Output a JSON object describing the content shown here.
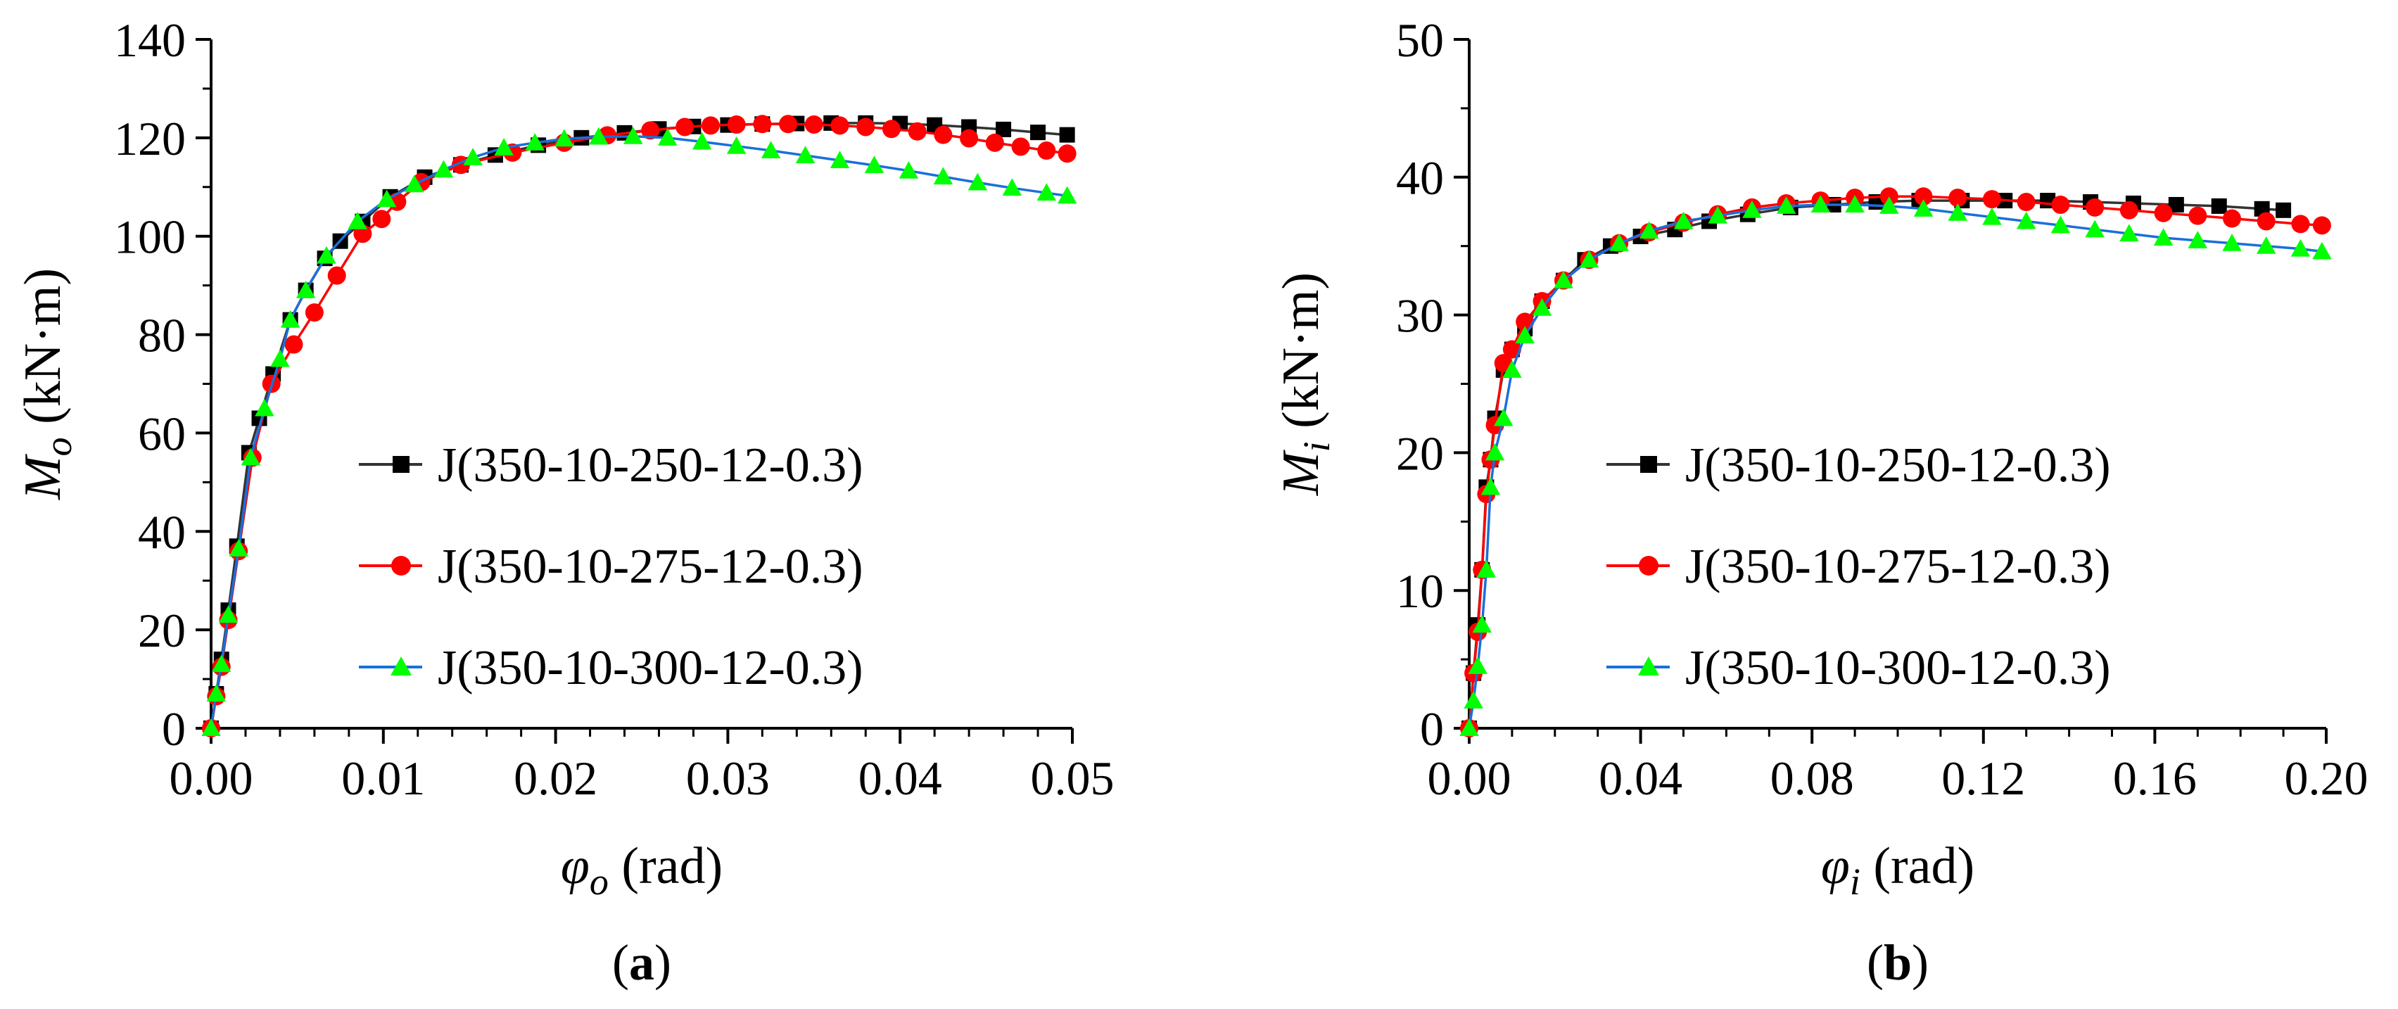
{
  "chart_data": [
    {
      "type": "line",
      "panel_label": "a",
      "xlabel": {
        "symbol": "φ",
        "subscript": "o",
        "unit": "(rad)"
      },
      "ylabel": {
        "symbol": "M",
        "subscript": "o",
        "unit": "(kN·m)"
      },
      "xlim": [
        0,
        0.05
      ],
      "ylim": [
        0,
        140
      ],
      "xticks": [
        0,
        0.01,
        0.02,
        0.03,
        0.04,
        0.05
      ],
      "xtick_labels": [
        "0.00",
        "0.01",
        "0.02",
        "0.03",
        "0.04",
        "0.05"
      ],
      "yticks": [
        0,
        20,
        40,
        60,
        80,
        100,
        120,
        140
      ],
      "ytick_labels": [
        "0",
        "20",
        "40",
        "60",
        "80",
        "100",
        "120",
        "140"
      ],
      "legend_position": "center-right",
      "series": [
        {
          "name": "J(350-10-250-12-0.3)",
          "color": "#000000",
          "line_color": "#333333",
          "marker": "square",
          "x": [
            0,
            0.0003,
            0.0006,
            0.001,
            0.0015,
            0.0022,
            0.0028,
            0.0036,
            0.0046,
            0.0055,
            0.0066,
            0.0075,
            0.0088,
            0.0104,
            0.0124,
            0.0145,
            0.0165,
            0.019,
            0.0215,
            0.024,
            0.026,
            0.028,
            0.03,
            0.032,
            0.034,
            0.036,
            0.038,
            0.04,
            0.042,
            0.044,
            0.046,
            0.048,
            0.0497
          ],
          "y": [
            0,
            7,
            14,
            24,
            37,
            56,
            63,
            72,
            83,
            89,
            95.5,
            99,
            103,
            108,
            112,
            114.5,
            116.5,
            118.5,
            120,
            121,
            121.8,
            122.3,
            122.6,
            122.8,
            122.9,
            123,
            123,
            122.9,
            122.6,
            122.2,
            121.7,
            121.1,
            120.6
          ]
        },
        {
          "name": "J(350-10-275-12-0.3)",
          "color": "#ff0000",
          "line_color": "#ff0000",
          "marker": "circle",
          "x": [
            0,
            0.0003,
            0.0006,
            0.001,
            0.0016,
            0.0024,
            0.0035,
            0.0048,
            0.006,
            0.0073,
            0.0088,
            0.0099,
            0.0108,
            0.0122,
            0.0145,
            0.0175,
            0.0205,
            0.023,
            0.0255,
            0.0275,
            0.029,
            0.0305,
            0.032,
            0.0335,
            0.035,
            0.0365,
            0.038,
            0.0395,
            0.041,
            0.0425,
            0.044,
            0.0455,
            0.047,
            0.0485,
            0.0497
          ],
          "y": [
            0,
            6.5,
            12.5,
            22,
            36,
            55,
            70,
            78,
            84.5,
            92,
            100.5,
            103.5,
            107,
            111,
            114.5,
            117,
            119,
            120.5,
            121.5,
            122.2,
            122.5,
            122.7,
            122.8,
            122.8,
            122.7,
            122.5,
            122.2,
            121.8,
            121.3,
            120.6,
            119.9,
            119,
            118.2,
            117.4,
            116.8
          ]
        },
        {
          "name": "J(350-10-300-12-0.3)",
          "color": "#00ff00",
          "line_color": "#1a6fd9",
          "marker": "triangle",
          "x": [
            0,
            0.0003,
            0.0006,
            0.001,
            0.0016,
            0.0023,
            0.0031,
            0.004,
            0.0046,
            0.0055,
            0.0067,
            0.0085,
            0.0102,
            0.0118,
            0.0135,
            0.0152,
            0.017,
            0.0188,
            0.0205,
            0.0225,
            0.0245,
            0.0265,
            0.0285,
            0.0305,
            0.0325,
            0.0345,
            0.0365,
            0.0385,
            0.0405,
            0.0425,
            0.0445,
            0.0465,
            0.0485,
            0.0497
          ],
          "y": [
            0,
            7,
            13,
            23,
            36.5,
            55,
            65,
            75,
            83,
            89,
            96,
            103,
            107.5,
            110.5,
            113.5,
            116,
            118,
            119,
            119.8,
            120.2,
            120.3,
            120,
            119.2,
            118.3,
            117.4,
            116.4,
            115.4,
            114.4,
            113.3,
            112.1,
            110.9,
            109.8,
            108.8,
            108.2
          ]
        }
      ]
    },
    {
      "type": "line",
      "panel_label": "b",
      "xlabel": {
        "symbol": "φ",
        "subscript": "i",
        "unit": "(rad)"
      },
      "ylabel": {
        "symbol": "M",
        "subscript": "i",
        "unit": "(kN·m)"
      },
      "xlim": [
        0,
        0.2
      ],
      "ylim": [
        0,
        50
      ],
      "xticks": [
        0,
        0.04,
        0.08,
        0.12,
        0.16,
        0.2
      ],
      "xtick_labels": [
        "0.00",
        "0.04",
        "0.08",
        "0.12",
        "0.16",
        "0.20"
      ],
      "yticks": [
        0,
        10,
        20,
        30,
        40,
        50
      ],
      "ytick_labels": [
        "0",
        "10",
        "20",
        "30",
        "40",
        "50"
      ],
      "legend_position": "center-right",
      "series": [
        {
          "name": "J(350-10-250-12-0.3)",
          "color": "#000000",
          "line_color": "#333333",
          "marker": "square",
          "x": [
            0,
            0.001,
            0.002,
            0.003,
            0.004,
            0.005,
            0.006,
            0.008,
            0.01,
            0.013,
            0.017,
            0.022,
            0.027,
            0.033,
            0.04,
            0.048,
            0.056,
            0.065,
            0.075,
            0.085,
            0.095,
            0.105,
            0.115,
            0.125,
            0.135,
            0.145,
            0.155,
            0.165,
            0.175,
            0.185,
            0.19
          ],
          "y": [
            0,
            4,
            7.5,
            11.5,
            17.5,
            19.5,
            22.5,
            26,
            27.5,
            29,
            31,
            32.5,
            34,
            35,
            35.7,
            36.2,
            36.8,
            37.3,
            37.8,
            38,
            38.2,
            38.3,
            38.3,
            38.3,
            38.3,
            38.2,
            38.1,
            38,
            37.9,
            37.7,
            37.6
          ]
        },
        {
          "name": "J(350-10-275-12-0.3)",
          "color": "#ff0000",
          "line_color": "#ff0000",
          "marker": "circle",
          "x": [
            0,
            0.001,
            0.002,
            0.003,
            0.004,
            0.005,
            0.006,
            0.008,
            0.01,
            0.013,
            0.017,
            0.022,
            0.028,
            0.035,
            0.042,
            0.05,
            0.058,
            0.066,
            0.074,
            0.082,
            0.09,
            0.098,
            0.106,
            0.114,
            0.122,
            0.13,
            0.138,
            0.146,
            0.154,
            0.162,
            0.17,
            0.178,
            0.186,
            0.194,
            0.199
          ],
          "y": [
            0,
            4,
            7,
            11.5,
            17,
            19.5,
            22,
            26.5,
            27.5,
            29.5,
            31,
            32.5,
            34,
            35.2,
            36,
            36.7,
            37.3,
            37.8,
            38.1,
            38.3,
            38.5,
            38.6,
            38.6,
            38.5,
            38.4,
            38.2,
            38,
            37.8,
            37.6,
            37.4,
            37.2,
            37,
            36.8,
            36.6,
            36.5
          ]
        },
        {
          "name": "J(350-10-300-12-0.3)",
          "color": "#00ff00",
          "line_color": "#1a6fd9",
          "marker": "triangle",
          "x": [
            0,
            0.001,
            0.002,
            0.003,
            0.004,
            0.005,
            0.006,
            0.008,
            0.01,
            0.013,
            0.017,
            0.022,
            0.028,
            0.035,
            0.042,
            0.05,
            0.058,
            0.066,
            0.074,
            0.082,
            0.09,
            0.098,
            0.106,
            0.114,
            0.122,
            0.13,
            0.138,
            0.146,
            0.154,
            0.162,
            0.17,
            0.178,
            0.186,
            0.194,
            0.199
          ],
          "y": [
            0,
            2,
            4.5,
            7.5,
            11.5,
            17.5,
            20,
            22.5,
            26,
            28.5,
            30.5,
            32.5,
            34,
            35.2,
            36.1,
            36.8,
            37.2,
            37.6,
            37.9,
            38,
            38,
            37.9,
            37.7,
            37.4,
            37.1,
            36.8,
            36.5,
            36.2,
            35.9,
            35.6,
            35.4,
            35.2,
            35,
            34.8,
            34.6
          ]
        }
      ]
    }
  ]
}
